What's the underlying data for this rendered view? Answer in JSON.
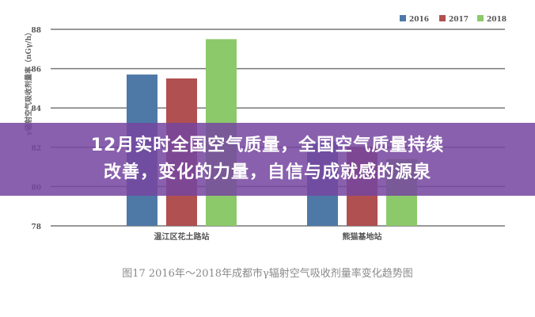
{
  "chart_data": {
    "type": "bar",
    "categories": [
      "温江区花土路站",
      "熊猫基地站"
    ],
    "series": [
      {
        "name": "2016",
        "color": "#4e79a7",
        "values": [
          85.7,
          82.3
        ]
      },
      {
        "name": "2017",
        "color": "#b05050",
        "values": [
          85.5,
          82.0
        ]
      },
      {
        "name": "2018",
        "color": "#8cc96a",
        "values": [
          87.5,
          81.4
        ]
      }
    ],
    "ylabel": "γ辐射空气吸收剂量率（nGγ/h）",
    "yticks": [
      78,
      80,
      82,
      84,
      86,
      88
    ],
    "ylim": [
      78,
      88
    ],
    "grid": true,
    "legend": "top-right",
    "caption": "图17   2016年～2018年成都市γ辐射空气吸收剂量率变化趋势图"
  },
  "banner": {
    "line1": "12月实时全国空气质量，全国空气质量持续",
    "line2": "改善，变化的力量，自信与成就感的源泉"
  }
}
